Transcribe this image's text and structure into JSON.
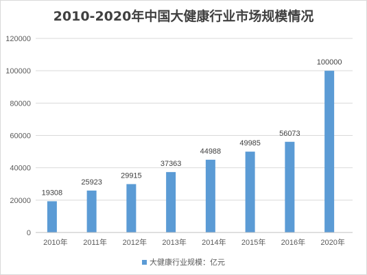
{
  "chart_data": {
    "type": "bar",
    "title": "2010-2020年中国大健康行业市场规模情况",
    "categories": [
      "2010年",
      "2011年",
      "2012年",
      "2013年",
      "2014年",
      "2015年",
      "2016年",
      "2020年"
    ],
    "series": [
      {
        "name": "大健康行业规模：亿元",
        "values": [
          19308,
          25923,
          29915,
          37363,
          44988,
          49985,
          56073,
          100000
        ],
        "color": "#5b9bd5"
      }
    ],
    "ylim": [
      0,
      120000
    ],
    "yticks": [
      "0",
      "20000",
      "40000",
      "60000",
      "80000",
      "100000",
      "120000"
    ],
    "grid": true,
    "legend": "bottom"
  }
}
